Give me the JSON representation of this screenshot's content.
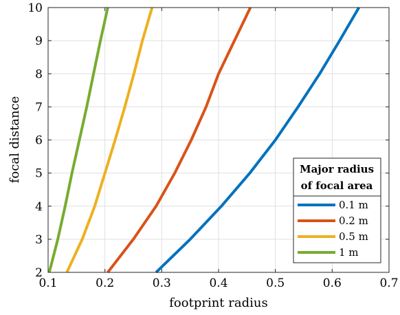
{
  "chart_data": {
    "type": "line",
    "xlabel": "footprint radius",
    "ylabel": "focal distance",
    "xlim": [
      0.1,
      0.7
    ],
    "ylim": [
      2,
      10
    ],
    "xticks": [
      0.1,
      0.2,
      0.3,
      0.4,
      0.5,
      0.6,
      0.7
    ],
    "yticks": [
      2,
      3,
      4,
      5,
      6,
      7,
      8,
      9,
      10
    ],
    "xtick_labels": [
      "0.1",
      "0.2",
      "0.3",
      "0.4",
      "0.5",
      "0.6",
      "0.7"
    ],
    "ytick_labels": [
      "2",
      "3",
      "4",
      "5",
      "6",
      "7",
      "8",
      "9",
      "10"
    ],
    "grid": true,
    "legend": {
      "title_line1": "Major radius",
      "title_line2": "of focal area",
      "placement": "bottom-right"
    },
    "y": [
      2,
      3,
      4,
      5,
      6,
      7,
      8,
      9,
      10
    ],
    "series": [
      {
        "name": "0.1 m",
        "color": "#0072BD",
        "x": [
          0.29,
          0.35,
          0.405,
          0.455,
          0.5,
          0.54,
          0.578,
          0.613,
          0.647
        ]
      },
      {
        "name": "0.2 m",
        "color": "#D95319",
        "x": [
          0.205,
          0.25,
          0.29,
          0.323,
          0.352,
          0.378,
          0.4,
          0.428,
          0.456
        ]
      },
      {
        "name": "0.5 m",
        "color": "#EDB120",
        "x": [
          0.133,
          0.16,
          0.182,
          0.2,
          0.218,
          0.235,
          0.251,
          0.266,
          0.283
        ]
      },
      {
        "name": "1 m",
        "color": "#77AC30",
        "x": [
          0.102,
          0.117,
          0.13,
          0.142,
          0.155,
          0.168,
          0.18,
          0.192,
          0.205
        ]
      }
    ]
  }
}
